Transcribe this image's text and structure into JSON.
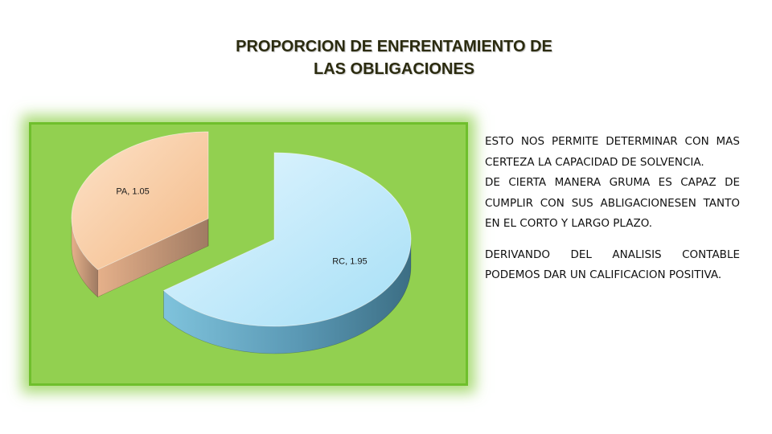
{
  "title": {
    "line1": "PROPORCION DE ENFRENTAMIENTO DE",
    "line2": "LAS OBLIGACIONES"
  },
  "chart_data": {
    "type": "pie",
    "style": "3d-exploded",
    "slices": [
      {
        "label": "RC",
        "value": 1.95,
        "data_label": "RC, 1.95",
        "color": "#b9e8fb"
      },
      {
        "label": "PA",
        "value": 1.05,
        "data_label": "PA, 1.05",
        "color": "#f8c79d"
      }
    ],
    "background_color": "#92d050",
    "legend": "none"
  },
  "text": {
    "paragraph1": "ESTO NOS PERMITE DETERMINAR CON MAS CERTEZA LA CAPACIDAD DE SOLVENCIA.",
    "paragraph2": "DE CIERTA MANERA GRUMA ES CAPAZ DE CUMPLIR CON SUS ABLIGACIONESEN  TANTO EN EL CORTO Y LARGO PLAZO.",
    "paragraph3": " DERIVANDO DEL ANALISIS CONTABLE  PODEMOS DAR UN CALIFICACION POSITIVA."
  }
}
